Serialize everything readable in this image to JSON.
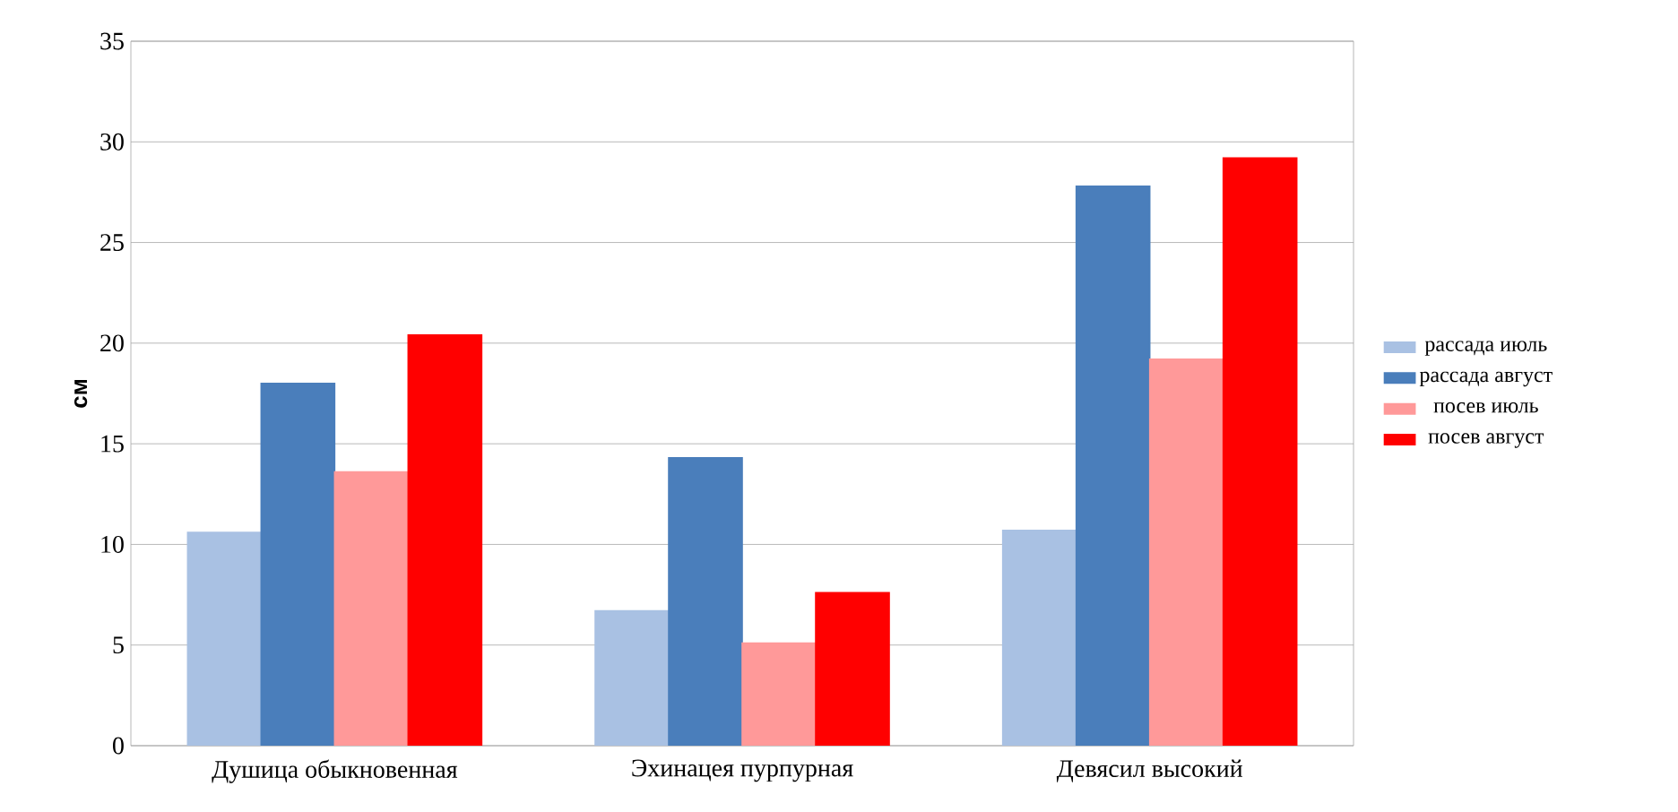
{
  "chart_data": {
    "type": "bar",
    "ylabel": "см",
    "categories": [
      "Душица обыкновенная",
      "Эхинацея пурпурная",
      "Девясил высокий"
    ],
    "series": [
      {
        "name": "рассада июль",
        "color": "#a9c1e3",
        "values": [
          10.6,
          6.7,
          10.7
        ]
      },
      {
        "name": "рассада август",
        "color": "#4a7ebb",
        "values": [
          18.0,
          14.3,
          27.8
        ]
      },
      {
        "name": "посев  июль",
        "color": "#ff9999",
        "values": [
          13.6,
          5.1,
          19.2
        ]
      },
      {
        "name": "посев  август",
        "color": "#ff0000",
        "values": [
          20.4,
          7.6,
          29.2
        ]
      }
    ],
    "ylim": [
      0,
      35
    ],
    "yticks": [
      0,
      5,
      10,
      15,
      20,
      25,
      30,
      35
    ],
    "grid": "y",
    "legend": "right"
  }
}
